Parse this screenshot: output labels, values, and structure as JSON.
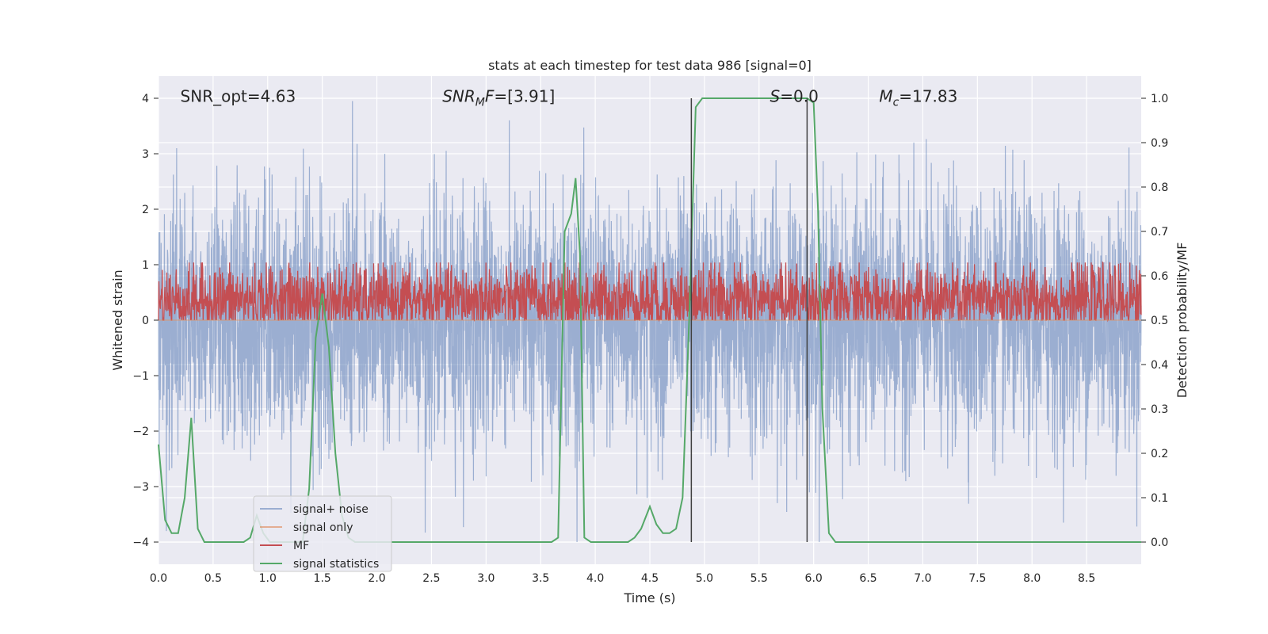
{
  "chart_data": {
    "type": "line",
    "title": "stats at each timestep for test data 986 [signal=0]",
    "xlabel": "Time (s)",
    "ylabel_left": "Whitened strain",
    "ylabel_right": "Detection probability/MF",
    "xlim": [
      0.0,
      9.0
    ],
    "ylim_left": [
      -4.4,
      4.4
    ],
    "ylim_right": [
      -0.05,
      1.05
    ],
    "x_ticks": [
      "0.0",
      "0.5",
      "1.0",
      "1.5",
      "2.0",
      "2.5",
      "3.0",
      "3.5",
      "4.0",
      "4.5",
      "5.0",
      "5.5",
      "6.0",
      "6.5",
      "7.0",
      "7.5",
      "8.0",
      "8.5"
    ],
    "x_tick_values": [
      0.0,
      0.5,
      1.0,
      1.5,
      2.0,
      2.5,
      3.0,
      3.5,
      4.0,
      4.5,
      5.0,
      5.5,
      6.0,
      6.5,
      7.0,
      7.5,
      8.0,
      8.5
    ],
    "y_left_ticks": [
      "−4",
      "−3",
      "−2",
      "−1",
      "0",
      "1",
      "2",
      "3",
      "4"
    ],
    "y_left_tick_values": [
      -4,
      -3,
      -2,
      -1,
      0,
      1,
      2,
      3,
      4
    ],
    "y_right_ticks": [
      "0.0",
      "0.1",
      "0.2",
      "0.3",
      "0.4",
      "0.5",
      "0.6",
      "0.7",
      "0.8",
      "0.9",
      "1.0"
    ],
    "y_right_tick_values": [
      0.0,
      0.1,
      0.2,
      0.3,
      0.4,
      0.5,
      0.6,
      0.7,
      0.8,
      0.9,
      1.0
    ],
    "grid": true,
    "legend_placement": "lower-left",
    "annotations": [
      {
        "text": "SNR_opt=4.63",
        "x": 0.2,
        "y": 4.05,
        "italic": false
      },
      {
        "text_italic": "SNR",
        "text_sub": "M",
        "text_italic2": "F",
        "text_tail": "=[3.91]",
        "x": 2.6,
        "y": 4.05
      },
      {
        "text_italic": "S",
        "text_tail": "=0.0",
        "x": 5.6,
        "y": 4.05
      },
      {
        "text_italic": "M",
        "text_sub": "c",
        "text_tail": "=17.83",
        "x": 6.6,
        "y": 4.05
      }
    ],
    "vertical_lines": [
      4.88,
      5.94
    ],
    "series": [
      {
        "name": "signal+ noise",
        "color": "#4c72b0",
        "opacity": 0.5,
        "axis": "left",
        "kind": "noise",
        "amplitude": 1.1,
        "peak_max": 3.95,
        "peak_min": -4.0
      },
      {
        "name": "signal only",
        "color": "#dd8452",
        "opacity": 0.6,
        "axis": "left",
        "kind": "flat",
        "value": 0.0
      },
      {
        "name": "MF",
        "color": "#c44e52",
        "axis": "right",
        "kind": "noise_band",
        "center": 0.545,
        "spread": 0.04,
        "max": 0.63,
        "min": 0.5
      },
      {
        "name": "signal statistics",
        "color": "#55a868",
        "axis": "right",
        "kind": "line",
        "x": [
          0.0,
          0.06,
          0.12,
          0.18,
          0.24,
          0.3,
          0.36,
          0.42,
          0.48,
          0.54,
          0.6,
          0.66,
          0.72,
          0.78,
          0.84,
          0.9,
          0.96,
          1.02,
          1.08,
          1.14,
          1.2,
          1.26,
          1.32,
          1.38,
          1.44,
          1.5,
          1.56,
          1.62,
          1.68,
          1.74,
          1.8,
          1.86,
          1.92,
          1.98,
          2.1,
          2.4,
          2.7,
          3.0,
          3.3,
          3.6,
          3.66,
          3.72,
          3.78,
          3.82,
          3.86,
          3.9,
          3.96,
          4.02,
          4.1,
          4.2,
          4.3,
          4.36,
          4.42,
          4.5,
          4.56,
          4.62,
          4.68,
          4.74,
          4.8,
          4.86,
          4.92,
          4.98,
          5.04,
          5.1,
          5.5,
          5.8,
          5.94,
          6.0,
          6.04,
          6.08,
          6.14,
          6.2,
          6.5,
          7.0,
          7.5,
          7.8,
          8.0,
          8.5,
          9.0
        ],
        "y": [
          0.22,
          0.05,
          0.02,
          0.02,
          0.1,
          0.28,
          0.03,
          0.0,
          0.0,
          0.0,
          0.0,
          0.0,
          0.0,
          0.0,
          0.01,
          0.06,
          0.02,
          0.0,
          0.0,
          0.0,
          0.0,
          0.0,
          0.0,
          0.12,
          0.46,
          0.56,
          0.44,
          0.2,
          0.06,
          0.01,
          0.0,
          0.0,
          0.0,
          0.0,
          0.0,
          0.0,
          0.0,
          0.0,
          0.0,
          0.0,
          0.01,
          0.7,
          0.74,
          0.82,
          0.65,
          0.01,
          0.0,
          0.0,
          0.0,
          0.0,
          0.0,
          0.01,
          0.03,
          0.08,
          0.04,
          0.02,
          0.02,
          0.03,
          0.1,
          0.5,
          0.98,
          1.0,
          1.0,
          1.0,
          1.0,
          1.0,
          1.0,
          0.99,
          0.75,
          0.3,
          0.02,
          0.0,
          0.0,
          0.0,
          0.0,
          0.0,
          0.0,
          0.0,
          0.0
        ]
      }
    ]
  }
}
